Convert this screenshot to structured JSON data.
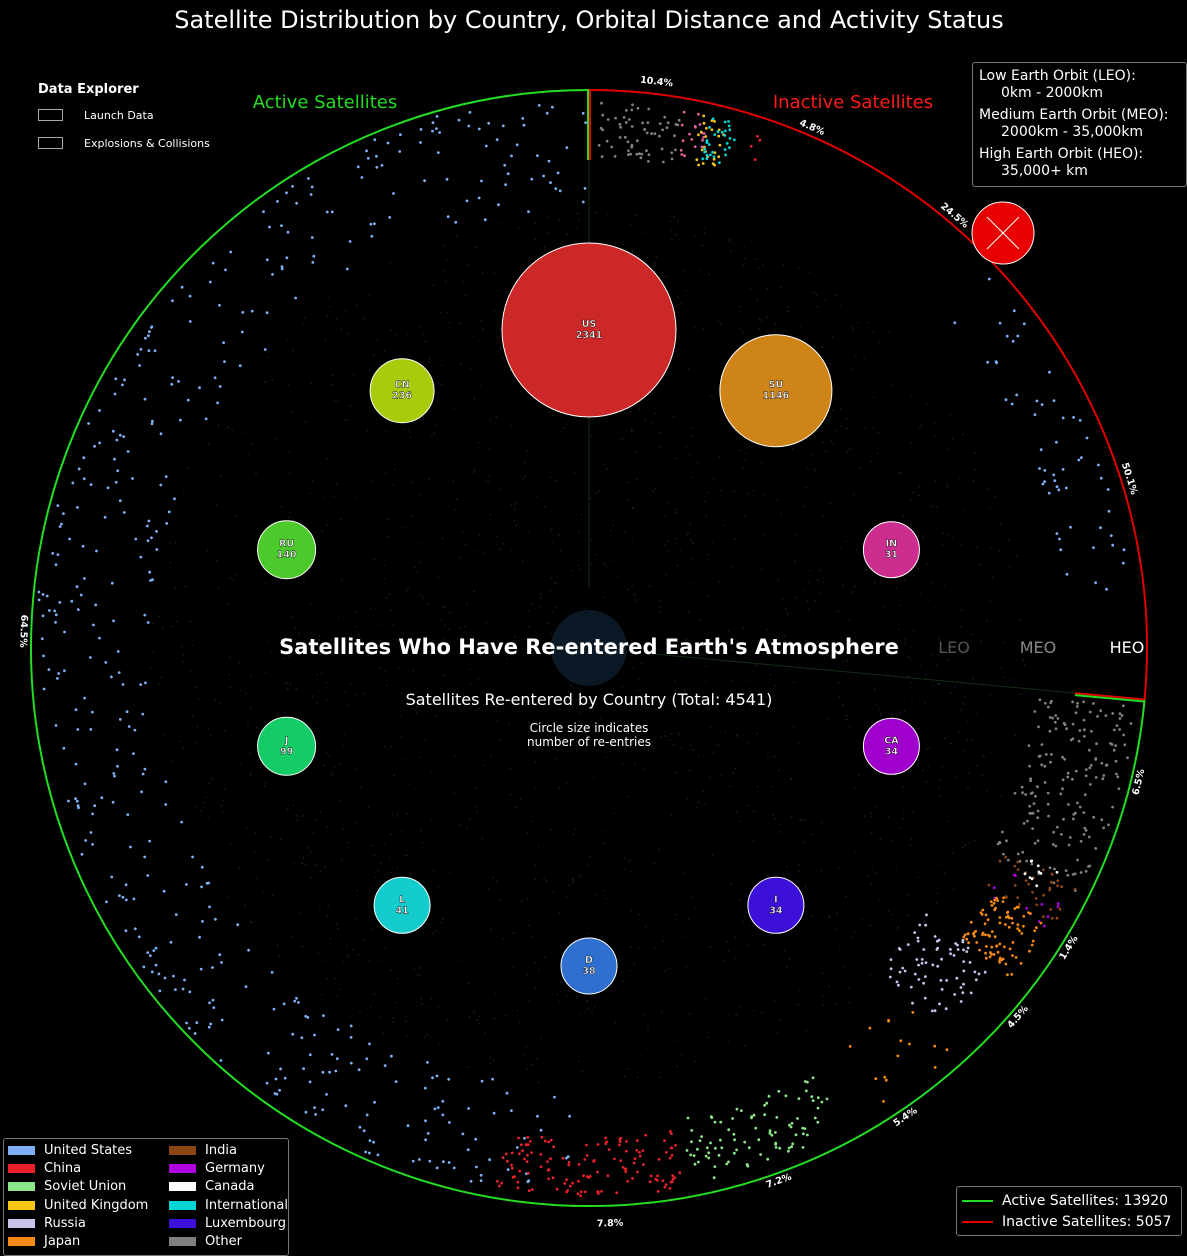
{
  "title": "Satellite Distribution by Country, Orbital Distance and Activity Status",
  "colors": {
    "active": "#22dd22",
    "inactive": "#e00000",
    "explosion": "#e80000"
  },
  "chart_data": {
    "type": "scatter",
    "title": "Satellite Distribution by Country, Orbital Distance and Activity Status",
    "center_title": "Satellites Who Have Re-entered Earth's Atmosphere",
    "center_subtitle": "Satellites Re-entered by Country (Total: 4541)",
    "circle_note_1": "Circle size indicates",
    "circle_note_2": "number of re-entries",
    "active_label": "Active Satellites",
    "inactive_label": "Inactive Satellites",
    "orbit_labels": [
      "LEO",
      "MEO",
      "HEO"
    ],
    "reentries": [
      {
        "code": "US",
        "count": 2341,
        "color": "#cc2828"
      },
      {
        "code": "SU",
        "count": 1146,
        "color": "#cf8418"
      },
      {
        "code": "IN",
        "count": 31,
        "color": "#cc2d8e"
      },
      {
        "code": "CA",
        "count": 34,
        "color": "#a000cc"
      },
      {
        "code": "I",
        "count": 34,
        "color": "#3c10d8"
      },
      {
        "code": "D",
        "count": 38,
        "color": "#2f6fd0"
      },
      {
        "code": "L",
        "count": 41,
        "color": "#14cccc"
      },
      {
        "code": "J",
        "count": 99,
        "color": "#14cc66"
      },
      {
        "code": "RU",
        "count": 140,
        "color": "#4cca2c"
      },
      {
        "code": "CN",
        "count": 236,
        "color": "#a8cc0c"
      }
    ],
    "active_total": 13920,
    "inactive_total": 5057,
    "active_segments": [
      {
        "country": "United States",
        "pct": "64.5%"
      },
      {
        "country": "Other",
        "pct": "6.5%"
      },
      {
        "country": "India",
        "pct": "1.4%"
      },
      {
        "country": "Japan",
        "pct": "4.5%"
      },
      {
        "country": "Russia",
        "pct": "5.4%"
      },
      {
        "country": "Soviet Union",
        "pct": "7.2%"
      },
      {
        "country": "China",
        "pct": "7.8%"
      }
    ],
    "inactive_segments": [
      {
        "pct": "10.4%"
      },
      {
        "pct": "4.8%"
      },
      {
        "pct": "24.5%"
      },
      {
        "pct": "50.1%"
      }
    ]
  },
  "legend": {
    "countries": [
      {
        "name": "United States",
        "color": "#7fb0f5"
      },
      {
        "name": "China",
        "color": "#e8212a"
      },
      {
        "name": "Soviet Union",
        "color": "#8ee68a"
      },
      {
        "name": "United Kingdom",
        "color": "#f5c518"
      },
      {
        "name": "Russia",
        "color": "#c8c4ec"
      },
      {
        "name": "Japan",
        "color": "#f58a14"
      },
      {
        "name": "India",
        "color": "#8b4513"
      },
      {
        "name": "Germany",
        "color": "#b000e0"
      },
      {
        "name": "Canada",
        "color": "#ffffff"
      },
      {
        "name": "International",
        "color": "#00d5d5"
      },
      {
        "name": "Luxembourg",
        "color": "#3c10d8"
      },
      {
        "name": "Other",
        "color": "#808080"
      }
    ]
  },
  "explorer": {
    "title": "Data Explorer",
    "items": [
      "Launch Data",
      "Explosions & Collisions"
    ]
  },
  "orbits": {
    "leo_name": "Low Earth Orbit (LEO):",
    "leo_range": "0km - 2000km",
    "meo_name": "Medium Earth Orbit (MEO):",
    "meo_range": "2000km - 35,000km",
    "heo_name": "High Earth Orbit (HEO):",
    "heo_range": "35,000+ km"
  },
  "status": {
    "active_text": "Active Satellites: 13920",
    "inactive_text": "Inactive Satellites: 5057"
  }
}
